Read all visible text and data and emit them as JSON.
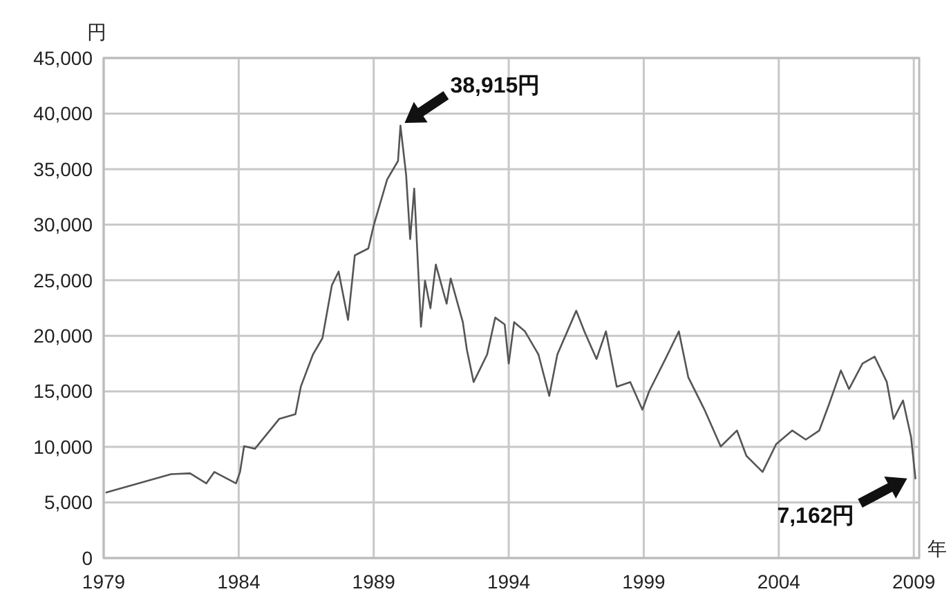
{
  "chart_data": {
    "type": "line",
    "xlabel": "年",
    "ylabel": "円",
    "x": [
      1979.1,
      1981.5,
      1982.2,
      1982.8,
      1983.1,
      1983.9,
      1984.05,
      1984.2,
      1984.6,
      1985.5,
      1986.1,
      1986.3,
      1986.75,
      1987.1,
      1987.45,
      1987.7,
      1988.05,
      1988.3,
      1988.8,
      1989.0,
      1989.5,
      1989.9,
      1989.99,
      1990.2,
      1990.35,
      1990.5,
      1990.75,
      1990.9,
      1991.1,
      1991.3,
      1991.7,
      1991.85,
      1992.3,
      1992.45,
      1992.7,
      1993.2,
      1993.5,
      1993.85,
      1994.0,
      1994.2,
      1994.6,
      1995.1,
      1995.5,
      1995.8,
      1996.5,
      1996.8,
      1997.25,
      1997.6,
      1998.0,
      1998.5,
      1998.95,
      1999.2,
      1999.8,
      2000.3,
      2000.65,
      2001.25,
      2001.85,
      2002.45,
      2002.8,
      2003.4,
      2003.9,
      2004.5,
      2005.0,
      2005.5,
      2005.85,
      2006.3,
      2006.6,
      2007.1,
      2007.55,
      2008.0,
      2008.25,
      2008.6,
      2008.9,
      2009.06
    ],
    "series": [
      {
        "color": "#555555",
        "values": [
          5900,
          7550,
          7620,
          6720,
          7750,
          6720,
          7750,
          10070,
          9830,
          12520,
          12940,
          15420,
          18320,
          19780,
          24540,
          25780,
          21430,
          27240,
          27860,
          29940,
          34080,
          35740,
          38915,
          34490,
          28700,
          33250,
          20810,
          24960,
          22480,
          26410,
          22890,
          25160,
          21230,
          18740,
          15840,
          18320,
          21640,
          21020,
          17500,
          21230,
          20400,
          18320,
          14590,
          18320,
          22260,
          20400,
          17910,
          20400,
          15420,
          15840,
          13350,
          15010,
          17910,
          20400,
          16260,
          13350,
          10040,
          11480,
          9200,
          7750,
          10240,
          11480,
          10660,
          11480,
          13770,
          16880,
          15210,
          17500,
          18120,
          15840,
          12520,
          14180,
          10860,
          7162
        ]
      }
    ],
    "xlim": [
      1979,
      2009.2
    ],
    "xticks": [
      1979,
      1984,
      1989,
      1994,
      1999,
      2004,
      2009
    ],
    "ylim": [
      0,
      45000
    ],
    "yticks": [
      0,
      {
        "value": 5000,
        "label": "5,000"
      },
      {
        "value": 10000,
        "label": "10,000"
      },
      {
        "value": 15000,
        "label": "15,000"
      },
      {
        "value": 20000,
        "label": "20,000"
      },
      {
        "value": 25000,
        "label": "25,000"
      },
      {
        "value": 30000,
        "label": "30,000"
      },
      {
        "value": 35000,
        "label": "35,000"
      },
      {
        "value": 40000,
        "label": "40,000"
      },
      {
        "value": 45000,
        "label": "45,000"
      }
    ],
    "grid": true,
    "marker": "none",
    "line_style": "solid",
    "annotations": [
      {
        "text": "38,915円",
        "x": 1989.99,
        "y": 38915
      },
      {
        "text": "7,162円",
        "x": 2009.06,
        "y": 7162
      }
    ]
  }
}
